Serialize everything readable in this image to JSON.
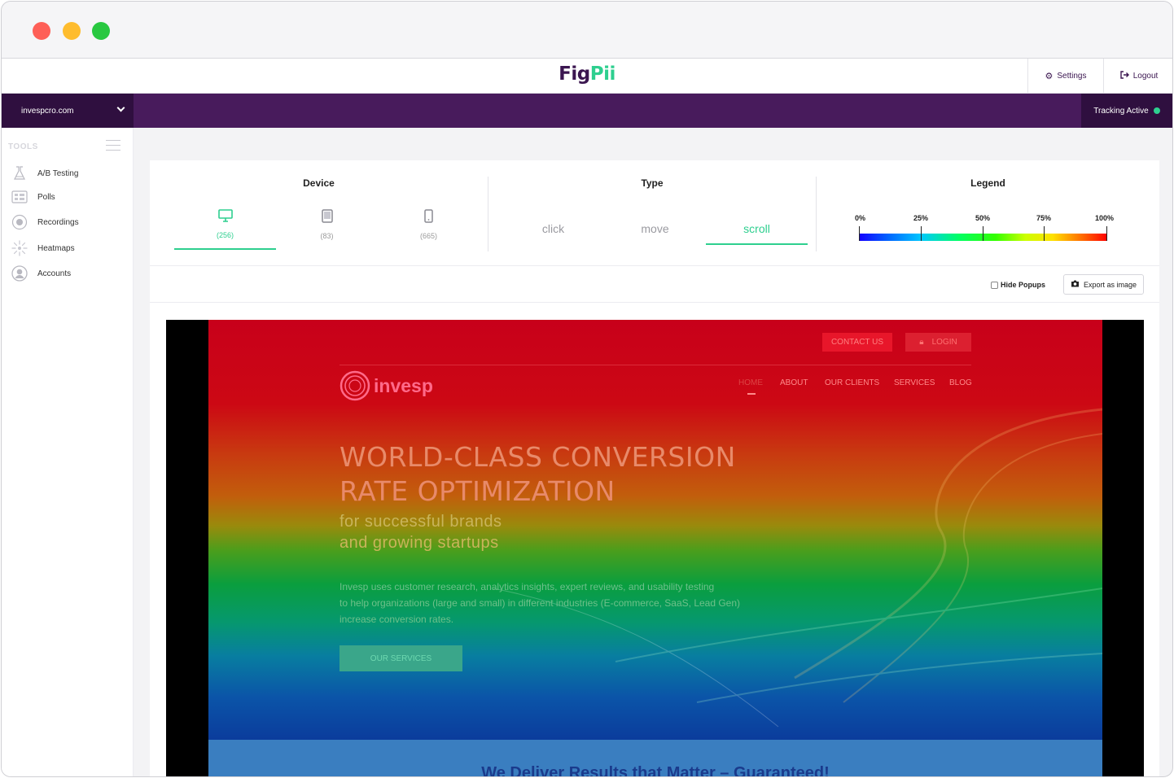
{
  "app": {
    "logo_part1": "Fig",
    "logo_part2": "Pii"
  },
  "topbar": {
    "settings_label": "Settings",
    "logout_label": "Logout"
  },
  "site_selector": {
    "value": "invespcro.com"
  },
  "tracking": {
    "label": "Tracking Active",
    "status_color": "#2ecf8f"
  },
  "sidebar": {
    "section_label": "TOOLS",
    "items": [
      {
        "label": "A/B Testing",
        "icon": "flask-icon"
      },
      {
        "label": "Polls",
        "icon": "poll-icon"
      },
      {
        "label": "Recordings",
        "icon": "record-icon"
      },
      {
        "label": "Heatmaps",
        "icon": "heatmap-icon"
      },
      {
        "label": "Accounts",
        "icon": "user-icon"
      }
    ]
  },
  "device": {
    "title": "Device",
    "tabs": [
      {
        "icon": "desktop-icon",
        "count": "(256)",
        "active": true
      },
      {
        "icon": "tablet-icon",
        "count": "(83)",
        "active": false
      },
      {
        "icon": "mobile-icon",
        "count": "(665)",
        "active": false
      }
    ]
  },
  "type": {
    "title": "Type",
    "tabs": [
      {
        "label": "click",
        "active": false
      },
      {
        "label": "move",
        "active": false
      },
      {
        "label": "scroll",
        "active": true
      }
    ]
  },
  "legend": {
    "title": "Legend",
    "labels": [
      "0%",
      "25%",
      "50%",
      "75%",
      "100%"
    ]
  },
  "controls": {
    "hide_popups_label": "Hide Popups",
    "hide_popups_checked": false,
    "export_label": "Export as image"
  },
  "preview": {
    "contact_label": "CONTACT US",
    "login_label": "LOGIN",
    "brand": "invesp",
    "menu": [
      "HOME",
      "ABOUT",
      "OUR CLIENTS",
      "SERVICES",
      "BLOG"
    ],
    "headline_line1": "WORLD-CLASS CONVERSION",
    "headline_line2": "RATE OPTIMIZATION",
    "sub_line1": "for successful brands",
    "sub_line2": "and growing startups",
    "body_line1": "Invesp uses customer research, analytics insights, expert reviews, and usability testing",
    "body_line2": "to help organizations (large and small) in different industries (E-commerce, SaaS, Lead Gen)",
    "body_line3": "increase conversion rates.",
    "cta_label": "OUR SERVICES",
    "band_title": "We Deliver Results that Matter – Guaranteed!"
  },
  "colors": {
    "accent": "#2ecf8f",
    "brand_purple": "#481b5c",
    "brand_dark": "#2f0f3f"
  }
}
